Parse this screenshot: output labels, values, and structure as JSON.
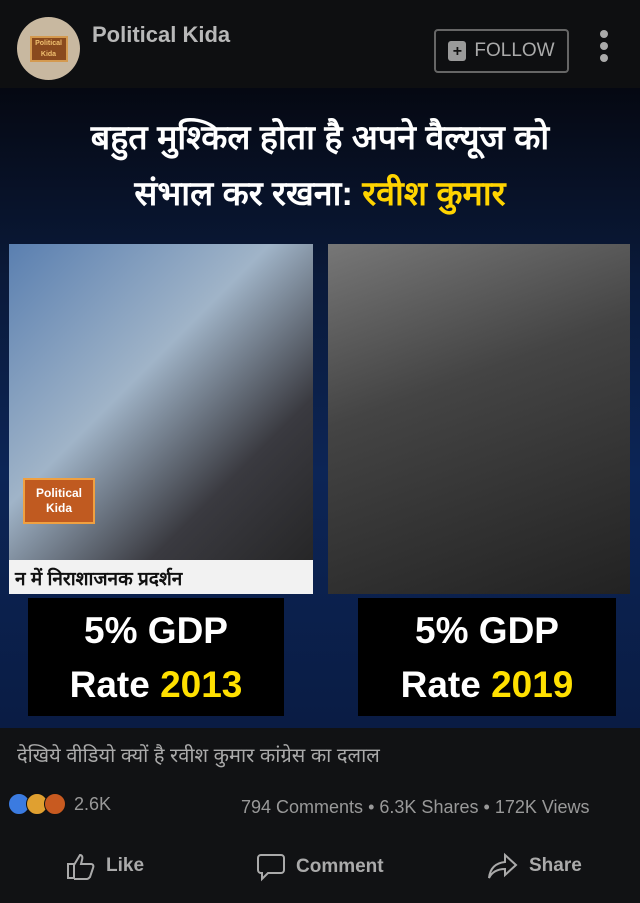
{
  "header": {
    "page_name": "Political Kida",
    "avatar_logo": "Political Kida",
    "follow_label": "FOLLOW",
    "follow_icon": "add-follow-icon",
    "more_icon": "more-vertical-icon"
  },
  "video": {
    "headline_line1": "बहुत मुश्किल होता है अपने वैल्यूज को",
    "headline_line2_prefix": "संभाल कर रखना:",
    "headline_line2_highlight": "रवीश कुमार",
    "ticker": "न में निराशाजनक प्रदर्शन",
    "channel_logo_line1": "Political",
    "channel_logo_line2": "Kida",
    "left_caption": {
      "line1": "5% GDP",
      "line2_prefix": "Rate",
      "year": "2013"
    },
    "right_caption": {
      "line1": "5% GDP",
      "line2_prefix": "Rate",
      "year": "2019"
    },
    "highlight_color": "#ffe000"
  },
  "post": {
    "description": "देखिये वीडियो क्यों है रवीश कुमार कांग्रेस का दलाल",
    "reaction_count": "2.6K",
    "comments": "794 Comments",
    "shares": "6.3K Shares",
    "views": "172K Views",
    "separator": "•"
  },
  "actions": {
    "like": "Like",
    "comment": "Comment",
    "share": "Share"
  }
}
